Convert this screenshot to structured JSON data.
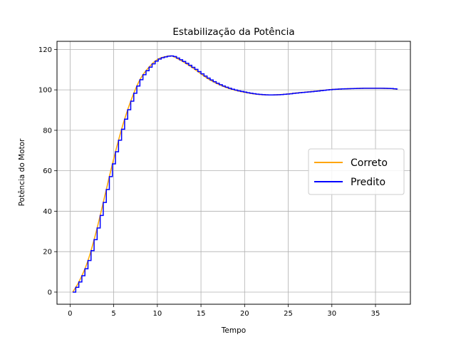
{
  "chart_data": {
    "type": "line",
    "title": "Estabilização da Potência",
    "xlabel": "Tempo",
    "ylabel": "Potência do Motor",
    "xlim": [
      -1.5,
      39.0
    ],
    "ylim": [
      -6,
      124
    ],
    "xticks": [
      0,
      5,
      10,
      15,
      20,
      25,
      30,
      35
    ],
    "yticks": [
      0,
      20,
      40,
      60,
      80,
      100,
      120
    ],
    "grid": true,
    "legend_position": "center-right",
    "colors": {
      "correct": "#FFA500",
      "predicted": "#0000FF"
    },
    "keypoints": {
      "x": [
        0.3,
        1.0,
        2.0,
        3.0,
        4.0,
        5.0,
        6.0,
        7.0,
        8.0,
        9.0,
        10.0,
        11.0,
        11.5,
        12.5,
        14.0,
        16.0,
        18.0,
        20.0,
        21.5,
        23.0,
        24.5,
        26.0,
        28.0,
        30.0,
        32.0,
        34.0,
        36.5,
        37.5
      ],
      "y": [
        0,
        5,
        15,
        30,
        48,
        66,
        82,
        95,
        105,
        111,
        115,
        116.5,
        116.8,
        115,
        111,
        105,
        101,
        98.8,
        97.8,
        97.5,
        97.8,
        98.5,
        99.3,
        100.2,
        100.6,
        100.8,
        100.7,
        100.3
      ]
    },
    "step_width": 0.35,
    "series": [
      {
        "name": "Correto",
        "style": "smooth"
      },
      {
        "name": "Predito",
        "style": "step"
      }
    ]
  }
}
